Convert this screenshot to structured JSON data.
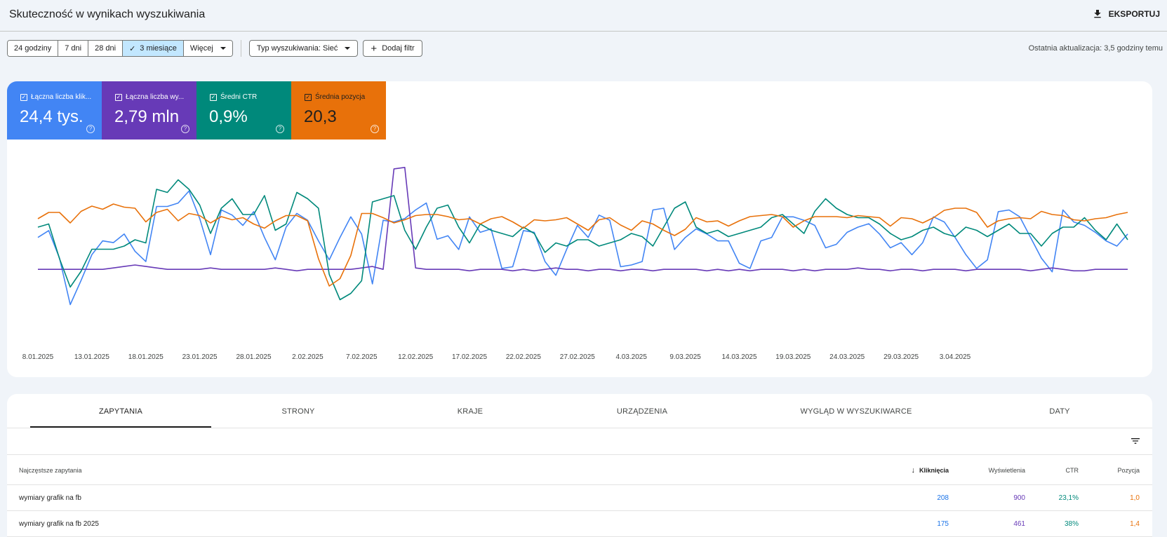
{
  "header": {
    "title": "Skuteczność w wynikach wyszukiwania",
    "export_label": "EKSPORTUJ"
  },
  "toolbar": {
    "ranges": [
      "24 godziny",
      "7 dni",
      "28 dni",
      "3 miesiące",
      "Więcej"
    ],
    "active_range": "3 miesiące",
    "search_type": "Typ wyszukiwania: Sieć",
    "add_filter": "Dodaj filtr",
    "last_update": "Ostatnia aktualizacja: 3,5 godziny temu"
  },
  "metrics": [
    {
      "label": "Łączna liczba klik...",
      "value": "24,4 tys.",
      "color": "#4285f4"
    },
    {
      "label": "Łączna liczba wy...",
      "value": "2,79 mln",
      "color": "#673ab7"
    },
    {
      "label": "Średni CTR",
      "value": "0,9%",
      "color": "#00897b"
    },
    {
      "label": "Średnia pozycja",
      "value": "20,3",
      "color": "#e8710a"
    }
  ],
  "chart_data": {
    "type": "line",
    "x_tick_labels": [
      "8.01.2025",
      "13.01.2025",
      "18.01.2025",
      "23.01.2025",
      "28.01.2025",
      "2.02.2025",
      "7.02.2025",
      "12.02.2025",
      "17.02.2025",
      "22.02.2025",
      "27.02.2025",
      "4.03.2025",
      "9.03.2025",
      "14.03.2025",
      "19.03.2025",
      "24.03.2025",
      "29.03.2025",
      "3.04.2025"
    ],
    "x_start": "2025-01-08",
    "y_axis_shown": false,
    "grid": false,
    "series": [
      {
        "name": "Łączna liczba kliknięć",
        "color": "#4285f4",
        "values": [
          70,
          74,
          58,
          31,
          45,
          60,
          68,
          67,
          72,
          62,
          56,
          88,
          88,
          90,
          97,
          81,
          60,
          86,
          83,
          77,
          85,
          70,
          57,
          76,
          84,
          80,
          68,
          57,
          70,
          82,
          72,
          43,
          80,
          79,
          81,
          86,
          90,
          69,
          71,
          63,
          82,
          73,
          75,
          52,
          53,
          74,
          73,
          56,
          48,
          63,
          77,
          70,
          83,
          80,
          53,
          54,
          56,
          86,
          87,
          63,
          70,
          75,
          72,
          68,
          68,
          55,
          52,
          68,
          70,
          82,
          82,
          80,
          77,
          64,
          66,
          73,
          76,
          78,
          72,
          64,
          67,
          60,
          67,
          82,
          79,
          70,
          60,
          52,
          57,
          85,
          86,
          82,
          70,
          58,
          50,
          86,
          79,
          77,
          73,
          68,
          65,
          72
        ]
      },
      {
        "name": "Łączna liczba wyświetleń",
        "color": "#673ab7",
        "values": [
          29,
          29,
          29,
          29,
          29,
          29,
          29,
          30,
          31,
          32,
          31,
          30,
          29,
          29,
          29,
          29,
          30,
          29,
          29,
          29,
          29,
          29,
          30,
          29,
          28,
          29,
          29,
          29,
          29,
          29,
          30,
          31,
          29,
          98,
          99,
          30,
          29,
          29,
          29,
          29,
          28,
          29,
          29,
          29,
          28,
          29,
          28,
          29,
          30,
          29,
          29,
          28,
          29,
          29,
          28,
          29,
          29,
          28,
          29,
          29,
          29,
          29,
          28,
          29,
          28,
          29,
          28,
          29,
          29,
          29,
          28,
          29,
          28,
          29,
          29,
          29,
          30,
          29,
          29,
          28,
          29,
          29,
          28,
          29,
          29,
          29,
          28,
          29,
          29,
          29,
          29,
          29,
          28,
          29,
          30,
          29,
          28,
          28,
          29,
          29,
          29,
          29
        ]
      },
      {
        "name": "Średni CTR",
        "color": "#00897b",
        "values": [
          1.06,
          1.07,
          0.96,
          0.87,
          0.92,
          0.99,
          0.99,
          0.99,
          1.0,
          1.02,
          1.01,
          1.18,
          1.17,
          1.21,
          1.18,
          1.13,
          1.04,
          1.12,
          1.15,
          1.1,
          1.1,
          1.16,
          1.05,
          1.07,
          1.17,
          1.15,
          1.12,
          0.91,
          0.83,
          0.85,
          0.89,
          1.14,
          1.15,
          1.16,
          1.05,
          0.99,
          1.06,
          1.12,
          1.13,
          1.06,
          1.01,
          1.07,
          1.05,
          1.04,
          1.03,
          1.06,
          1.04,
          0.98,
          1.01,
          1.0,
          1.02,
          1.02,
          1.0,
          1.01,
          1.02,
          1.04,
          1.03,
          1.0,
          1.06,
          1.12,
          1.14,
          1.06,
          1.04,
          1.05,
          1.03,
          1.04,
          1.05,
          1.06,
          1.09,
          1.1,
          1.07,
          1.04,
          1.11,
          1.15,
          1.12,
          1.1,
          1.09,
          1.09,
          1.07,
          1.04,
          1.02,
          1.03,
          1.05,
          1.06,
          1.04,
          1.03,
          1.06,
          1.05,
          1.03,
          1.05,
          1.07,
          1.04,
          1.04,
          1.0,
          1.04,
          1.06,
          1.06,
          1.09,
          1.05,
          1.02,
          1.07,
          1.02
        ]
      },
      {
        "name": "Średnia pozycja",
        "color": "#e8710a",
        "values": [
          16.4,
          15.8,
          15.8,
          16.8,
          15.7,
          15.2,
          15.5,
          15.0,
          15.3,
          15.4,
          16.7,
          15.8,
          15.5,
          16.6,
          15.9,
          16.1,
          16.8,
          16.2,
          16.5,
          16.3,
          16.9,
          17.3,
          16.6,
          16.1,
          16.1,
          16.6,
          20.2,
          22.8,
          22.1,
          19.9,
          15.9,
          15.9,
          16.3,
          16.8,
          16.5,
          16.1,
          16.0,
          16.0,
          16.2,
          16.5,
          16.4,
          16.9,
          16.4,
          16.2,
          16.7,
          17.3,
          16.5,
          16.6,
          16.5,
          16.3,
          16.9,
          17.5,
          16.5,
          16.3,
          17.0,
          17.5,
          16.6,
          16.9,
          17.5,
          18.0,
          17.4,
          16.3,
          16.7,
          16.6,
          17.1,
          16.6,
          16.2,
          16.1,
          16.0,
          16.2,
          17.2,
          16.6,
          16.2,
          16.2,
          16.2,
          16.3,
          16.1,
          16.2,
          16.3,
          17.1,
          16.3,
          16.4,
          16.8,
          16.3,
          15.6,
          15.4,
          15.4,
          15.8,
          17.2,
          16.6,
          16.4,
          16.3,
          16.4,
          15.7,
          16.0,
          16.1,
          16.5,
          16.6,
          16.4,
          16.3,
          16.0,
          15.8
        ]
      }
    ]
  },
  "tabs": [
    "ZAPYTANIA",
    "STRONY",
    "KRAJE",
    "URZĄDZENIA",
    "WYGLĄD W WYSZUKIWARCE",
    "DATY"
  ],
  "active_tab": "ZAPYTANIA",
  "table": {
    "headers": {
      "query": "Najczęstsze zapytania",
      "clicks": "Kliknięcia",
      "impressions": "Wyświetlenia",
      "ctr": "CTR",
      "position": "Pozycja"
    },
    "sort": "clicks-desc",
    "rows": [
      {
        "query": "wymiary grafik na fb",
        "clicks": "208",
        "impressions": "900",
        "ctr": "23,1%",
        "position": "1,0"
      },
      {
        "query": "wymiary grafik na fb 2025",
        "clicks": "175",
        "impressions": "461",
        "ctr": "38%",
        "position": "1,4"
      }
    ]
  },
  "colors": {
    "clicks": "#4285f4",
    "impressions": "#673ab7",
    "ctr": "#00897b",
    "position": "#e8710a"
  }
}
